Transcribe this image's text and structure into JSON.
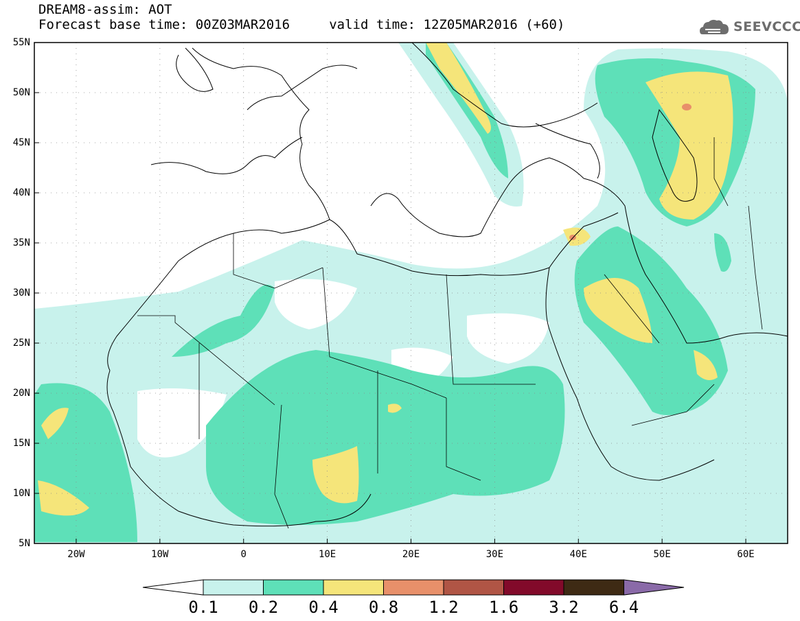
{
  "header": {
    "title_line1": "DREAM8-assim: AOT",
    "title_line2": "Forecast base time: 00Z03MAR2016     valid time: 12Z05MAR2016 (+60)",
    "logo_text": "SEEVCCC",
    "logo_icon": "cloud-logo-icon"
  },
  "map": {
    "projection": "lat-lon",
    "lon_range": [
      -25,
      65
    ],
    "lat_range": [
      5,
      55
    ],
    "grid": true,
    "lat_labels": [
      "55N",
      "50N",
      "45N",
      "40N",
      "35N",
      "30N",
      "25N",
      "20N",
      "15N",
      "10N",
      "5N"
    ],
    "lon_labels": [
      "20W",
      "10W",
      "0",
      "10E",
      "20E",
      "30E",
      "40E",
      "50E",
      "60E"
    ]
  },
  "colorbar": {
    "levels": [
      "0.1",
      "0.2",
      "0.4",
      "0.8",
      "1.2",
      "1.6",
      "3.2",
      "6.4"
    ],
    "colors": [
      "#c8f2ec",
      "#5ee0b8",
      "#f5e57a",
      "#e8906a",
      "#b05545",
      "#820a2a",
      "#3e2a14",
      "#8a6aa8"
    ]
  },
  "colors": {
    "level_0_1": "#c8f2ec",
    "level_0_2": "#5ee0b8",
    "level_0_4": "#f5e57a",
    "level_0_8": "#e8906a",
    "frame": "#000000",
    "coastline": "#000000",
    "gridline": "#8a8a8a"
  }
}
